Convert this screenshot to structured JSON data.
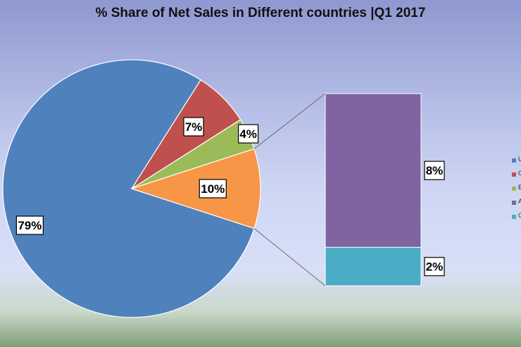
{
  "chart_data": {
    "type": "pie",
    "subtype": "bar-of-pie",
    "title": "% Share of Net Sales in Different countries |Q1 2017",
    "series": [
      {
        "legend": "U",
        "value": 79,
        "label": "79%",
        "color": "#4f81bd",
        "in_pie": true
      },
      {
        "legend": "C",
        "value": 7,
        "label": "7%",
        "color": "#c0504d",
        "in_pie": true
      },
      {
        "legend": "E",
        "value": 4,
        "label": "4%",
        "color": "#9bbb59",
        "in_pie": true
      },
      {
        "legend": "A",
        "value": 8,
        "label": "8%",
        "color": "#8064a2",
        "in_pie": false
      },
      {
        "legend": "O",
        "value": 2,
        "label": "2%",
        "color": "#4bacc6",
        "in_pie": false
      }
    ],
    "other": {
      "value": 10,
      "label": "10%",
      "color": "#f79646"
    },
    "legend_position": "right"
  }
}
